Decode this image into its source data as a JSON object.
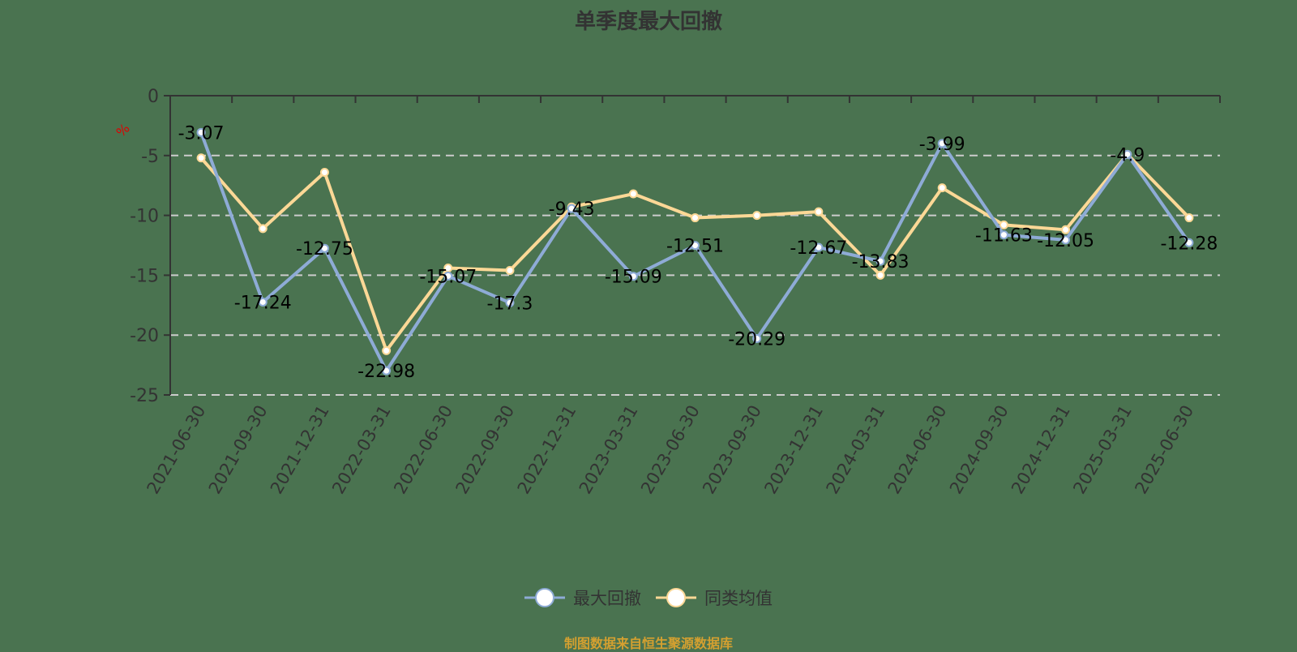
{
  "chart_data": {
    "type": "line",
    "title": "单季度最大回撤",
    "ylabel": "%",
    "xlabel": "",
    "ylim": [
      -25,
      0
    ],
    "yticks": [
      0,
      -5,
      -10,
      -15,
      -20,
      -25
    ],
    "grid": "horizontal dashed",
    "legend_position": "bottom",
    "categories": [
      "2021-06-30",
      "2021-09-30",
      "2021-12-31",
      "2022-03-31",
      "2022-06-30",
      "2022-09-30",
      "2022-12-31",
      "2023-03-31",
      "2023-06-30",
      "2023-09-30",
      "2023-12-31",
      "2024-03-31",
      "2024-06-30",
      "2024-09-30",
      "2024-12-31",
      "2025-03-31",
      "2025-06-30"
    ],
    "series": [
      {
        "name": "最大回撤",
        "color": "#8eabd6",
        "values": [
          -3.07,
          -17.24,
          -12.75,
          -22.98,
          -15.07,
          -17.3,
          -9.43,
          -15.09,
          -12.51,
          -20.29,
          -12.67,
          -13.83,
          -3.99,
          -11.63,
          -12.05,
          -4.9,
          -12.28
        ],
        "labels_shown": true
      },
      {
        "name": "同类均值",
        "color": "#fcd896",
        "values": [
          -5.2,
          -11.1,
          -6.4,
          -21.3,
          -14.4,
          -14.6,
          -9.3,
          -8.2,
          -10.2,
          -10.0,
          -9.7,
          -15.0,
          -7.7,
          -10.8,
          -11.2,
          -4.9,
          -10.2
        ],
        "labels_shown": false
      }
    ],
    "source_note": "制图数据来自恒生聚源数据库"
  },
  "title": "单季度最大回撤",
  "y_unit": "%",
  "legend": [
    {
      "label": "最大回撤",
      "color": "#8eabd6"
    },
    {
      "label": "同类均值",
      "color": "#fcd896"
    }
  ],
  "footer": "制图数据来自恒生聚源数据库"
}
